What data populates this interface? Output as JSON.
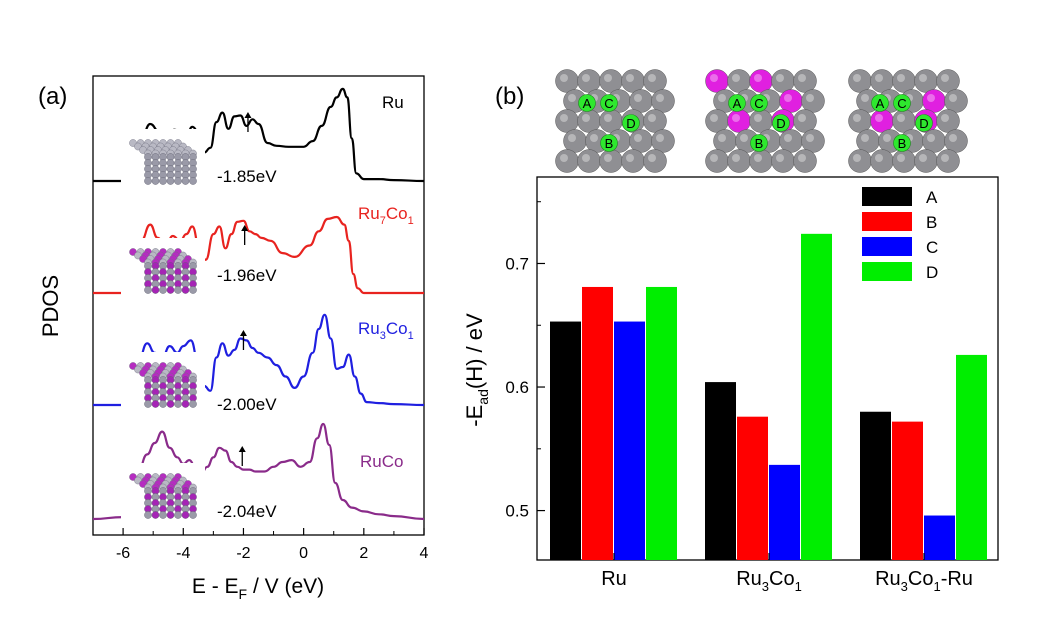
{
  "chart_data": [
    {
      "panel_label": "(a)",
      "type": "line",
      "xlabel_parts": [
        "E - E",
        "F",
        " / V (eV)"
      ],
      "ylabel": "PDOS",
      "xlim": [
        -7,
        4
      ],
      "x_ticks": [
        -6,
        -4,
        -2,
        0,
        2,
        4
      ],
      "series": [
        {
          "name": "Ru",
          "name_parts": [
            "Ru"
          ],
          "color": "#000000",
          "d_band_center": -1.85,
          "d_band_label": "-1.85eV",
          "x": [
            -7.0,
            -6.0,
            -5.7,
            -5.4,
            -5.1,
            -4.8,
            -4.5,
            -4.3,
            -4.1,
            -3.9,
            -3.7,
            -3.5,
            -3.3,
            -3.1,
            -2.9,
            -2.7,
            -2.5,
            -2.3,
            -2.1,
            -1.9,
            -1.7,
            -1.5,
            -1.2,
            -0.9,
            -0.5,
            0.0,
            0.3,
            0.6,
            0.9,
            1.1,
            1.3,
            1.45,
            1.6,
            1.75,
            2.0,
            2.5,
            3.0,
            4.0
          ],
          "y": [
            0.0,
            0.0,
            0.08,
            0.45,
            0.6,
            0.52,
            0.44,
            0.54,
            0.52,
            0.47,
            0.57,
            0.52,
            0.3,
            0.35,
            0.62,
            0.72,
            0.55,
            0.68,
            0.69,
            0.58,
            0.65,
            0.6,
            0.4,
            0.37,
            0.36,
            0.36,
            0.42,
            0.58,
            0.78,
            0.88,
            0.97,
            0.88,
            0.45,
            0.08,
            0.02,
            0.02,
            0.01,
            0.0
          ]
        },
        {
          "name": "Ru7Co1",
          "name_parts": [
            "Ru",
            "7",
            "Co",
            "1"
          ],
          "color": "#e8231f",
          "d_band_center": -1.96,
          "d_band_label": "-1.96eV",
          "x": [
            -7.0,
            -6.0,
            -5.7,
            -5.4,
            -5.1,
            -4.85,
            -4.6,
            -4.35,
            -4.1,
            -3.9,
            -3.7,
            -3.45,
            -3.25,
            -3.0,
            -2.8,
            -2.6,
            -2.4,
            -2.2,
            -2.0,
            -1.8,
            -1.6,
            -1.4,
            -1.1,
            -0.7,
            -0.3,
            0.2,
            0.5,
            0.8,
            1.1,
            1.35,
            1.5,
            1.65,
            1.8,
            2.0,
            3.0,
            4.0
          ],
          "y": [
            0.0,
            0.0,
            0.12,
            0.55,
            0.72,
            0.58,
            0.48,
            0.6,
            0.55,
            0.62,
            0.7,
            0.45,
            0.35,
            0.62,
            0.7,
            0.47,
            0.62,
            0.75,
            0.76,
            0.65,
            0.62,
            0.58,
            0.55,
            0.42,
            0.38,
            0.5,
            0.65,
            0.78,
            0.8,
            0.72,
            0.55,
            0.2,
            0.05,
            0.0,
            0.0,
            0.0
          ]
        },
        {
          "name": "Ru3Co1",
          "name_parts": [
            "Ru",
            "3",
            "Co",
            "1"
          ],
          "color": "#1f1fe0",
          "d_band_center": -2.0,
          "d_band_label": "-2.00eV",
          "x": [
            -7.0,
            -6.0,
            -5.8,
            -5.5,
            -5.2,
            -4.95,
            -4.7,
            -4.45,
            -4.2,
            -4.0,
            -3.75,
            -3.5,
            -3.3,
            -3.1,
            -2.9,
            -2.7,
            -2.5,
            -2.3,
            -2.1,
            -1.9,
            -1.7,
            -1.5,
            -1.2,
            -0.9,
            -0.6,
            -0.3,
            0.0,
            0.3,
            0.5,
            0.7,
            0.9,
            1.1,
            1.3,
            1.5,
            1.7,
            1.9,
            2.1,
            2.5,
            3.0,
            4.0
          ],
          "y": [
            0.0,
            0.0,
            0.1,
            0.45,
            0.65,
            0.55,
            0.5,
            0.62,
            0.55,
            0.62,
            0.68,
            0.45,
            0.2,
            0.15,
            0.5,
            0.65,
            0.52,
            0.58,
            0.7,
            0.68,
            0.6,
            0.55,
            0.5,
            0.42,
            0.3,
            0.18,
            0.3,
            0.55,
            0.8,
            0.95,
            0.7,
            0.38,
            0.4,
            0.53,
            0.3,
            0.12,
            0.03,
            0.02,
            0.01,
            0.0
          ]
        },
        {
          "name": "RuCo",
          "name_parts": [
            "RuCo"
          ],
          "color": "#8a2b8a",
          "d_band_center": -2.04,
          "d_band_label": "-2.04eV",
          "x": [
            -7.0,
            -6.0,
            -5.8,
            -5.5,
            -5.2,
            -4.95,
            -4.7,
            -4.45,
            -4.2,
            -4.0,
            -3.8,
            -3.6,
            -3.4,
            -3.2,
            -3.0,
            -2.8,
            -2.6,
            -2.4,
            -2.2,
            -2.0,
            -1.8,
            -1.6,
            -1.3,
            -1.0,
            -0.7,
            -0.4,
            -0.1,
            0.2,
            0.45,
            0.65,
            0.85,
            1.05,
            1.3,
            1.6,
            2.0,
            2.5,
            3.0,
            4.0
          ],
          "y": [
            0.0,
            0.02,
            0.12,
            0.5,
            0.68,
            0.8,
            0.92,
            0.75,
            0.65,
            0.58,
            0.62,
            0.55,
            0.48,
            0.55,
            0.65,
            0.75,
            0.72,
            0.6,
            0.55,
            0.52,
            0.52,
            0.5,
            0.5,
            0.55,
            0.6,
            0.62,
            0.55,
            0.6,
            0.85,
            1.0,
            0.78,
            0.38,
            0.2,
            0.12,
            0.08,
            0.05,
            0.03,
            0.0
          ]
        }
      ]
    },
    {
      "panel_label": "(b)",
      "type": "bar",
      "categories": [
        {
          "label": "Ru",
          "parts": [
            "Ru"
          ]
        },
        {
          "label": "Ru3Co1",
          "parts": [
            "Ru",
            "3",
            "Co",
            "1"
          ]
        },
        {
          "label": "Ru3Co1-Ru",
          "parts": [
            "Ru",
            "3",
            "Co",
            "1",
            "-Ru"
          ]
        }
      ],
      "ylabel_parts": [
        "-E",
        "ad",
        "(H) / eV"
      ],
      "ylim": [
        0.46,
        0.77
      ],
      "y_ticks": [
        0.5,
        0.6,
        0.7
      ],
      "legend_position": "top-right",
      "site_labels": [
        "A",
        "C",
        "D",
        "B"
      ],
      "series": [
        {
          "name": "A",
          "color": "#000000",
          "values": [
            0.653,
            0.604,
            0.58
          ]
        },
        {
          "name": "B",
          "color": "#ff0000",
          "values": [
            0.681,
            0.576,
            0.572
          ]
        },
        {
          "name": "C",
          "color": "#0000ff",
          "values": [
            0.653,
            0.537,
            0.496
          ]
        },
        {
          "name": "D",
          "color": "#00ee00",
          "values": [
            0.681,
            0.724,
            0.626
          ]
        }
      ]
    }
  ]
}
